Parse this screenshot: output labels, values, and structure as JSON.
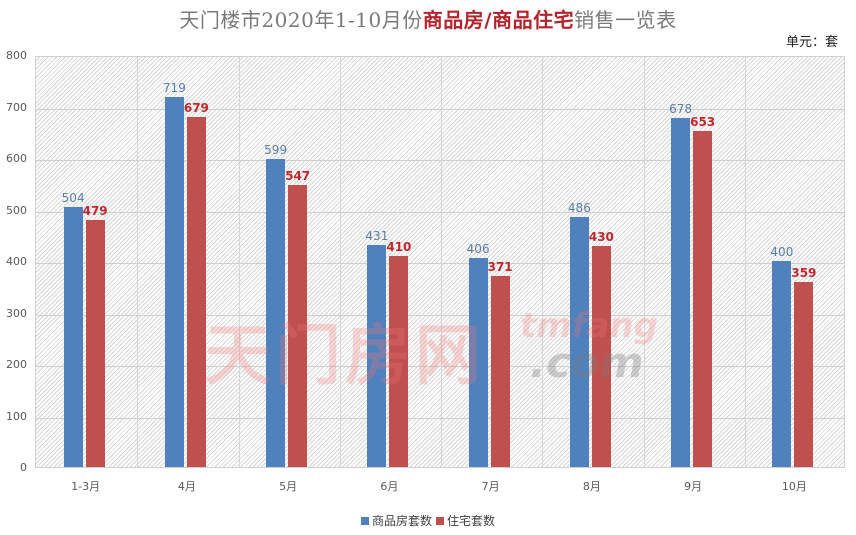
{
  "title": {
    "part1": "天门楼市2020年1-10月份",
    "highlight1": "商品房",
    "sep": "/",
    "highlight2": "商品住宅",
    "part2": "销售一览表"
  },
  "unit_label": "单元：套",
  "colors": {
    "series1": "#4f81bd",
    "series2": "#c0504d",
    "title_highlight": "#b5242c"
  },
  "watermark": {
    "cn": "天门房网",
    "en1": "tmfang",
    "en2": ".com"
  },
  "legend": [
    {
      "label": "商品房套数",
      "color": "#4f81bd"
    },
    {
      "label": "住宅套数",
      "color": "#c0504d"
    }
  ],
  "chart_data": {
    "type": "bar",
    "title": "天门楼市2020年1-10月份商品房/商品住宅销售一览表",
    "unit": "单元：套",
    "categories": [
      "1-3月",
      "4月",
      "5月",
      "6月",
      "7月",
      "8月",
      "9月",
      "10月"
    ],
    "series": [
      {
        "name": "商品房套数",
        "color": "#4f81bd",
        "values": [
          504,
          719,
          599,
          431,
          406,
          486,
          678,
          400
        ]
      },
      {
        "name": "住宅套数",
        "color": "#c0504d",
        "values": [
          479,
          679,
          547,
          410,
          371,
          430,
          653,
          359
        ]
      }
    ],
    "xlabel": "",
    "ylabel": "",
    "ylim": [
      0,
      800
    ],
    "yticks": [
      0,
      100,
      200,
      300,
      400,
      500,
      600,
      700,
      800
    ],
    "grid": true,
    "legend_position": "bottom",
    "data_labels": true
  }
}
